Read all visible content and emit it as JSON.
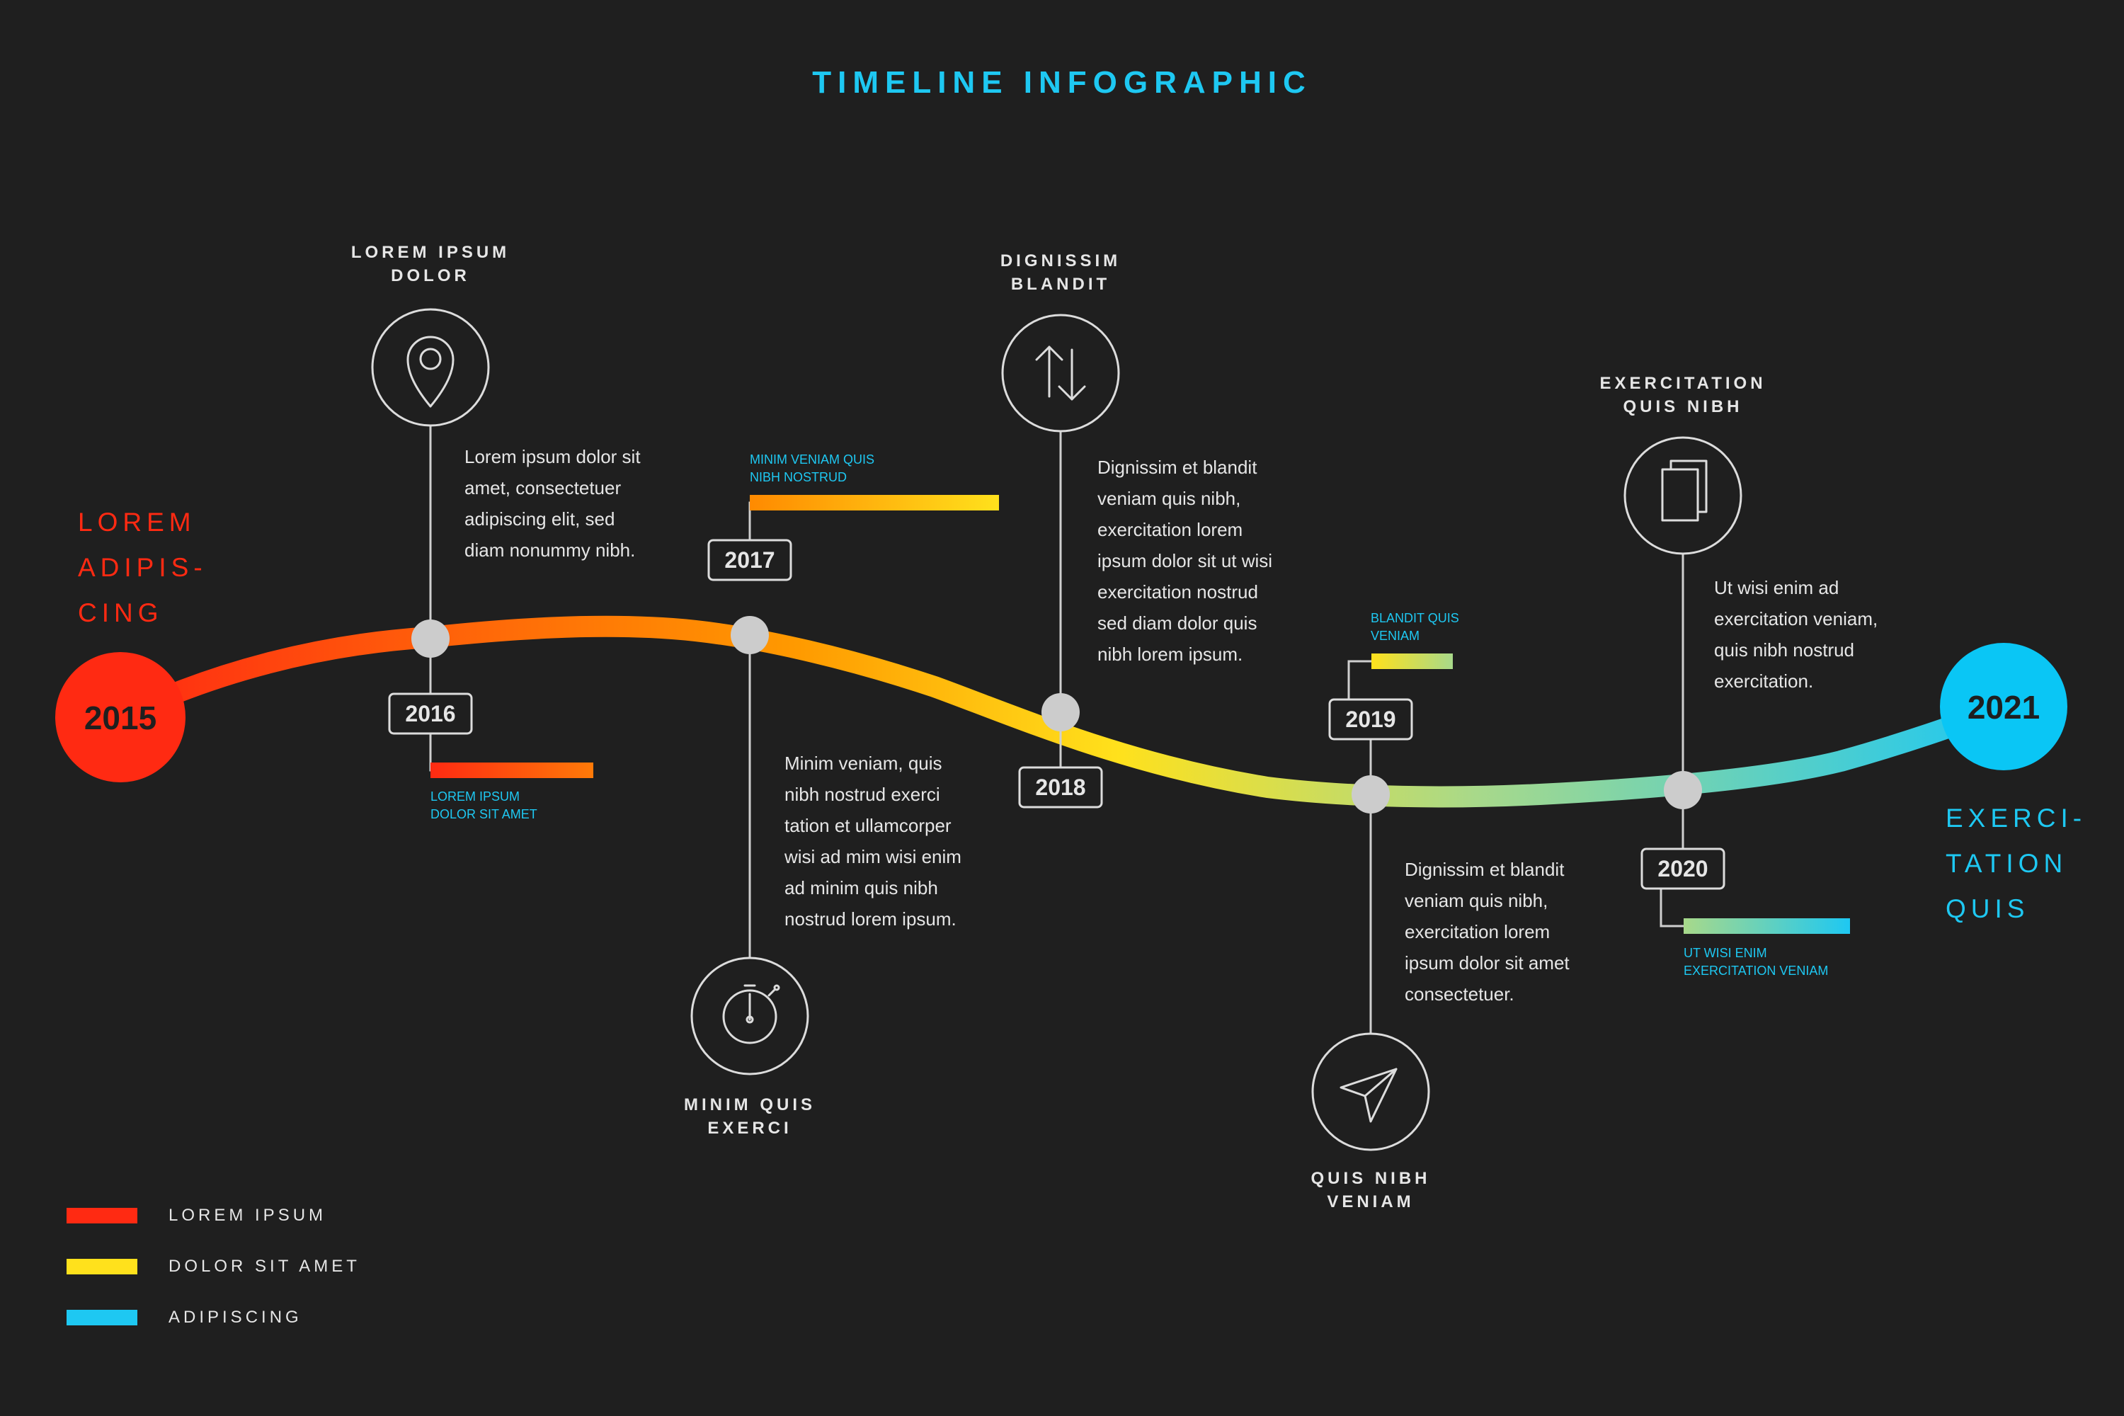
{
  "title": "TIMELINE INFOGRAPHIC",
  "colors": {
    "background": "#1f1f1f",
    "red": "#ff2a12",
    "orange": "#ff8a00",
    "yellow": "#ffe11c",
    "green": "#a8d98a",
    "cyan": "#1ec8f2",
    "node": "#cccccc",
    "line": "#cfcfcf",
    "text": "#e6e6e6"
  },
  "side_left": [
    "LOREM",
    "ADIPIS-",
    "CING"
  ],
  "side_right": [
    "EXERCI-",
    "TATION",
    "QUIS"
  ],
  "endpoints": {
    "start_year": "2015",
    "end_year": "2021"
  },
  "milestones": [
    {
      "year": "2016",
      "icon": "map-pin-icon",
      "label": [
        "LOREM IPSUM",
        "DOLOR"
      ],
      "paragraph": [
        "Lorem ipsum dolor sit",
        "amet, consectetuer",
        "adipiscing elit, sed",
        "diam nonummy nibh."
      ],
      "bar_caption": [
        "LOREM IPSUM",
        "DOLOR SIT AMET"
      ]
    },
    {
      "year": "2017",
      "icon": "stopwatch-icon",
      "label": [
        "MINIM QUIS",
        "EXERCI"
      ],
      "paragraph": [
        "Minim veniam, quis",
        "nibh nostrud exerci",
        "tation et ullamcorper",
        "wisi ad mim wisi enim",
        "ad minim quis nibh",
        "nostrud lorem ipsum."
      ],
      "bar_caption": [
        "MINIM VENIAM QUIS",
        "NIBH NOSTRUD"
      ]
    },
    {
      "year": "2018",
      "icon": "up-down-arrows-icon",
      "label": [
        "DIGNISSIM",
        "BLANDIT"
      ],
      "paragraph": [
        "Dignissim et blandit",
        "veniam quis nibh,",
        "exercitation lorem",
        "ipsum dolor sit ut wisi",
        "exercitation nostrud",
        "sed diam dolor quis",
        "nibh lorem ipsum."
      ]
    },
    {
      "year": "2019",
      "icon": "paper-plane-icon",
      "label": [
        "QUIS NIBH",
        "VENIAM"
      ],
      "paragraph": [
        "Dignissim et blandit",
        "veniam quis nibh,",
        "exercitation lorem",
        "ipsum dolor sit amet",
        "consectetuer."
      ],
      "bar_caption": [
        "BLANDIT QUIS",
        "VENIAM"
      ]
    },
    {
      "year": "2020",
      "icon": "documents-icon",
      "label": [
        "EXERCITATION",
        "QUIS NIBH"
      ],
      "paragraph": [
        "Ut wisi enim ad",
        "exercitation veniam,",
        "quis nibh nostrud",
        "exercitation."
      ],
      "bar_caption": [
        "UT WISI ENIM",
        "EXERCITATION VENIAM"
      ]
    }
  ],
  "legend": [
    {
      "label": "LOREM IPSUM",
      "color": "#ff2a12"
    },
    {
      "label": "DOLOR SIT AMET",
      "color": "#ffe11c"
    },
    {
      "label": "ADIPISCING",
      "color": "#1ec8f2"
    }
  ]
}
